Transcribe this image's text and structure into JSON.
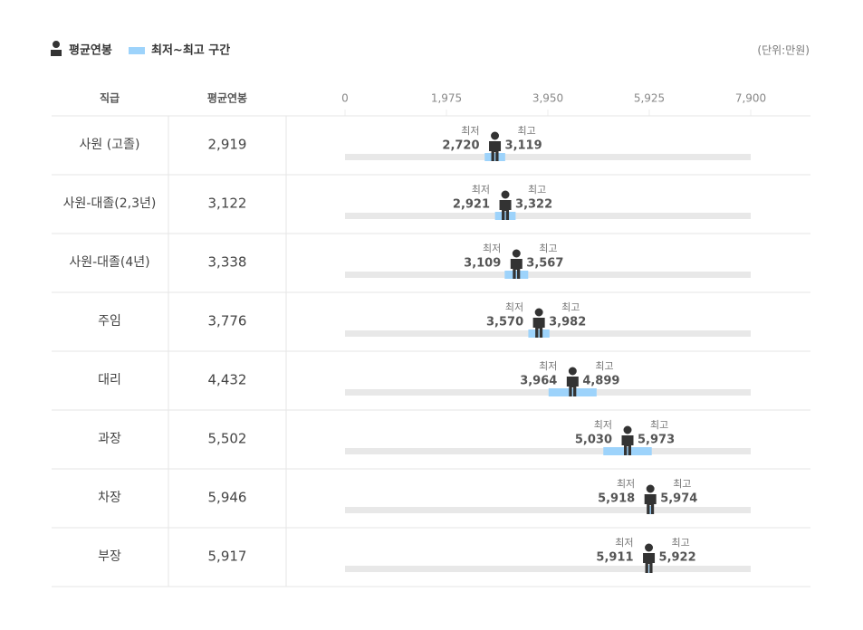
{
  "legend": {
    "range": "최저~최고 구간"
  },
  "unit": "(단위:만원)",
  "table": {
    "headers": [
      "직급",
      "평균연봉"
    ]
  },
  "chart_data": {
    "type": "range",
    "xlim": [
      0,
      7900
    ],
    "xticks": [
      0,
      {
        "value": 1975,
        "label": "1,975"
      },
      {
        "value": 3950,
        "label": "3,950"
      },
      {
        "value": 5925,
        "label": "5,925"
      },
      {
        "value": 7900,
        "label": "7,900"
      }
    ],
    "categories": [
      "사원 (고졸)",
      "사원-대졸(2,3년)",
      "사원-대졸(4년)",
      "주임",
      "대리",
      "과장",
      "차장",
      "부장"
    ],
    "series": [
      {
        "name": "평균연봉",
        "color": "#333333",
        "values": [
          2919,
          3122,
          3338,
          3776,
          4432,
          5502,
          5946,
          5917
        ],
        "value_labels": [
          "2,919",
          "3,122",
          "3,338",
          "3,776",
          "4,432",
          "5,502",
          "5,946",
          "5,917"
        ]
      },
      {
        "name": "최저",
        "color": "#9dd3fb",
        "values": [
          2720,
          2921,
          3109,
          3570,
          3964,
          5030,
          5918,
          5911
        ],
        "value_labels": [
          "2,720",
          "2,921",
          "3,109",
          "3,570",
          "3,964",
          "5,030",
          "5,918",
          "5,911"
        ]
      },
      {
        "name": "최고",
        "color": "#9dd3fb",
        "values": [
          3119,
          3322,
          3567,
          3982,
          4899,
          5973,
          5974,
          5922
        ],
        "value_labels": [
          "3,119",
          "3,322",
          "3,567",
          "3,982",
          "4,899",
          "5,973",
          "5,974",
          "5,922"
        ]
      }
    ]
  }
}
